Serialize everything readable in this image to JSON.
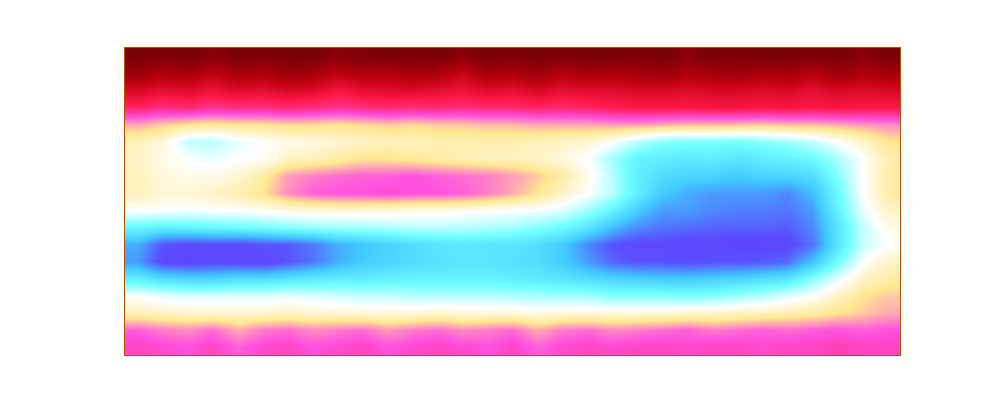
{
  "chart_data": {
    "type": "heatmap",
    "z": [
      [
        0.04,
        0.05,
        0.04,
        0.06,
        0.04,
        0.05,
        0.04,
        0.04,
        0.06,
        0.05,
        0.04,
        0.05,
        0.04,
        0.06,
        0.04,
        0.05,
        0.04,
        0.05,
        0.04,
        0.04,
        0.05,
        0.04,
        0.06,
        0.04,
        0.05,
        0.04,
        0.04,
        0.05,
        0.04,
        0.06,
        0.04
      ],
      [
        0.08,
        0.1,
        0.09,
        0.12,
        0.09,
        0.1,
        0.08,
        0.09,
        0.12,
        0.1,
        0.11,
        0.09,
        0.1,
        0.13,
        0.09,
        0.1,
        0.08,
        0.11,
        0.09,
        0.1,
        0.09,
        0.08,
        0.1,
        0.09,
        0.08,
        0.1,
        0.09,
        0.11,
        0.08,
        0.1,
        0.09
      ],
      [
        0.15,
        0.17,
        0.16,
        0.18,
        0.16,
        0.17,
        0.15,
        0.16,
        0.19,
        0.17,
        0.16,
        0.16,
        0.17,
        0.18,
        0.16,
        0.17,
        0.15,
        0.17,
        0.16,
        0.16,
        0.15,
        0.15,
        0.16,
        0.15,
        0.15,
        0.16,
        0.15,
        0.17,
        0.15,
        0.16,
        0.15
      ],
      [
        0.22,
        0.24,
        0.23,
        0.25,
        0.24,
        0.24,
        0.23,
        0.24,
        0.25,
        0.24,
        0.23,
        0.24,
        0.23,
        0.24,
        0.23,
        0.23,
        0.22,
        0.23,
        0.22,
        0.21,
        0.2,
        0.2,
        0.2,
        0.19,
        0.19,
        0.2,
        0.19,
        0.2,
        0.19,
        0.2,
        0.2
      ],
      [
        0.36,
        0.38,
        0.4,
        0.41,
        0.4,
        0.4,
        0.39,
        0.39,
        0.4,
        0.39,
        0.38,
        0.39,
        0.38,
        0.38,
        0.37,
        0.37,
        0.36,
        0.36,
        0.36,
        0.35,
        0.35,
        0.36,
        0.37,
        0.37,
        0.37,
        0.38,
        0.37,
        0.37,
        0.36,
        0.35,
        0.34
      ],
      [
        0.44,
        0.47,
        0.55,
        0.56,
        0.52,
        0.5,
        0.48,
        0.47,
        0.46,
        0.45,
        0.44,
        0.44,
        0.43,
        0.43,
        0.43,
        0.43,
        0.44,
        0.45,
        0.46,
        0.5,
        0.56,
        0.6,
        0.61,
        0.61,
        0.62,
        0.6,
        0.58,
        0.55,
        0.5,
        0.45,
        0.4
      ],
      [
        0.45,
        0.48,
        0.5,
        0.52,
        0.5,
        0.49,
        0.45,
        0.44,
        0.42,
        0.4,
        0.4,
        0.41,
        0.42,
        0.43,
        0.44,
        0.44,
        0.45,
        0.47,
        0.5,
        0.58,
        0.65,
        0.66,
        0.67,
        0.66,
        0.68,
        0.66,
        0.65,
        0.63,
        0.57,
        0.5,
        0.43
      ],
      [
        0.44,
        0.47,
        0.48,
        0.48,
        0.46,
        0.42,
        0.35,
        0.33,
        0.32,
        0.31,
        0.31,
        0.3,
        0.31,
        0.32,
        0.33,
        0.35,
        0.38,
        0.42,
        0.48,
        0.56,
        0.66,
        0.7,
        0.72,
        0.72,
        0.74,
        0.72,
        0.72,
        0.7,
        0.6,
        0.5,
        0.42
      ],
      [
        0.44,
        0.46,
        0.46,
        0.45,
        0.43,
        0.4,
        0.34,
        0.31,
        0.3,
        0.3,
        0.29,
        0.3,
        0.3,
        0.31,
        0.33,
        0.36,
        0.4,
        0.45,
        0.5,
        0.56,
        0.66,
        0.74,
        0.78,
        0.8,
        0.8,
        0.8,
        0.82,
        0.76,
        0.63,
        0.5,
        0.42
      ],
      [
        0.5,
        0.5,
        0.51,
        0.5,
        0.5,
        0.49,
        0.48,
        0.47,
        0.47,
        0.47,
        0.47,
        0.48,
        0.48,
        0.49,
        0.5,
        0.5,
        0.51,
        0.53,
        0.58,
        0.65,
        0.74,
        0.8,
        0.8,
        0.82,
        0.83,
        0.83,
        0.84,
        0.8,
        0.65,
        0.52,
        0.45
      ],
      [
        0.64,
        0.66,
        0.65,
        0.64,
        0.63,
        0.62,
        0.6,
        0.59,
        0.58,
        0.58,
        0.57,
        0.56,
        0.56,
        0.56,
        0.57,
        0.58,
        0.6,
        0.63,
        0.68,
        0.76,
        0.82,
        0.84,
        0.85,
        0.86,
        0.86,
        0.86,
        0.87,
        0.82,
        0.68,
        0.55,
        0.48
      ],
      [
        0.78,
        0.88,
        0.9,
        0.89,
        0.9,
        0.88,
        0.87,
        0.84,
        0.78,
        0.75,
        0.72,
        0.7,
        0.68,
        0.67,
        0.68,
        0.68,
        0.7,
        0.74,
        0.82,
        0.88,
        0.9,
        0.9,
        0.91,
        0.9,
        0.92,
        0.91,
        0.9,
        0.84,
        0.68,
        0.55,
        0.5
      ],
      [
        0.8,
        0.9,
        0.91,
        0.9,
        0.9,
        0.91,
        0.88,
        0.84,
        0.78,
        0.74,
        0.72,
        0.7,
        0.69,
        0.68,
        0.68,
        0.69,
        0.7,
        0.74,
        0.8,
        0.86,
        0.88,
        0.88,
        0.89,
        0.88,
        0.88,
        0.87,
        0.85,
        0.75,
        0.62,
        0.5,
        0.45
      ],
      [
        0.66,
        0.7,
        0.72,
        0.72,
        0.7,
        0.7,
        0.68,
        0.67,
        0.66,
        0.66,
        0.65,
        0.65,
        0.65,
        0.65,
        0.65,
        0.66,
        0.67,
        0.68,
        0.7,
        0.72,
        0.73,
        0.74,
        0.74,
        0.73,
        0.72,
        0.7,
        0.68,
        0.6,
        0.52,
        0.45,
        0.42
      ],
      [
        0.5,
        0.52,
        0.53,
        0.53,
        0.53,
        0.53,
        0.52,
        0.53,
        0.54,
        0.55,
        0.55,
        0.56,
        0.56,
        0.56,
        0.56,
        0.57,
        0.57,
        0.58,
        0.58,
        0.6,
        0.6,
        0.6,
        0.61,
        0.6,
        0.58,
        0.56,
        0.53,
        0.5,
        0.45,
        0.4,
        0.38
      ],
      [
        0.44,
        0.45,
        0.46,
        0.46,
        0.46,
        0.46,
        0.45,
        0.46,
        0.46,
        0.47,
        0.47,
        0.47,
        0.46,
        0.47,
        0.47,
        0.47,
        0.48,
        0.47,
        0.47,
        0.47,
        0.47,
        0.47,
        0.46,
        0.46,
        0.45,
        0.44,
        0.43,
        0.42,
        0.4,
        0.38,
        0.36
      ],
      [
        0.31,
        0.33,
        0.34,
        0.32,
        0.36,
        0.33,
        0.32,
        0.34,
        0.33,
        0.32,
        0.35,
        0.33,
        0.32,
        0.34,
        0.33,
        0.32,
        0.36,
        0.33,
        0.32,
        0.34,
        0.33,
        0.32,
        0.31,
        0.33,
        0.32,
        0.31,
        0.32,
        0.31,
        0.3,
        0.31,
        0.3
      ],
      [
        0.28,
        0.29,
        0.3,
        0.28,
        0.31,
        0.29,
        0.28,
        0.3,
        0.29,
        0.28,
        0.3,
        0.29,
        0.28,
        0.29,
        0.3,
        0.28,
        0.31,
        0.29,
        0.28,
        0.29,
        0.28,
        0.28,
        0.29,
        0.28,
        0.28,
        0.29,
        0.28,
        0.28,
        0.27,
        0.28,
        0.28
      ]
    ],
    "zlim": [
      0,
      1
    ],
    "xlim": [
      -0.5,
      30.5
    ],
    "ylim": [
      17.5,
      -0.5
    ],
    "tick_labels": false
  }
}
